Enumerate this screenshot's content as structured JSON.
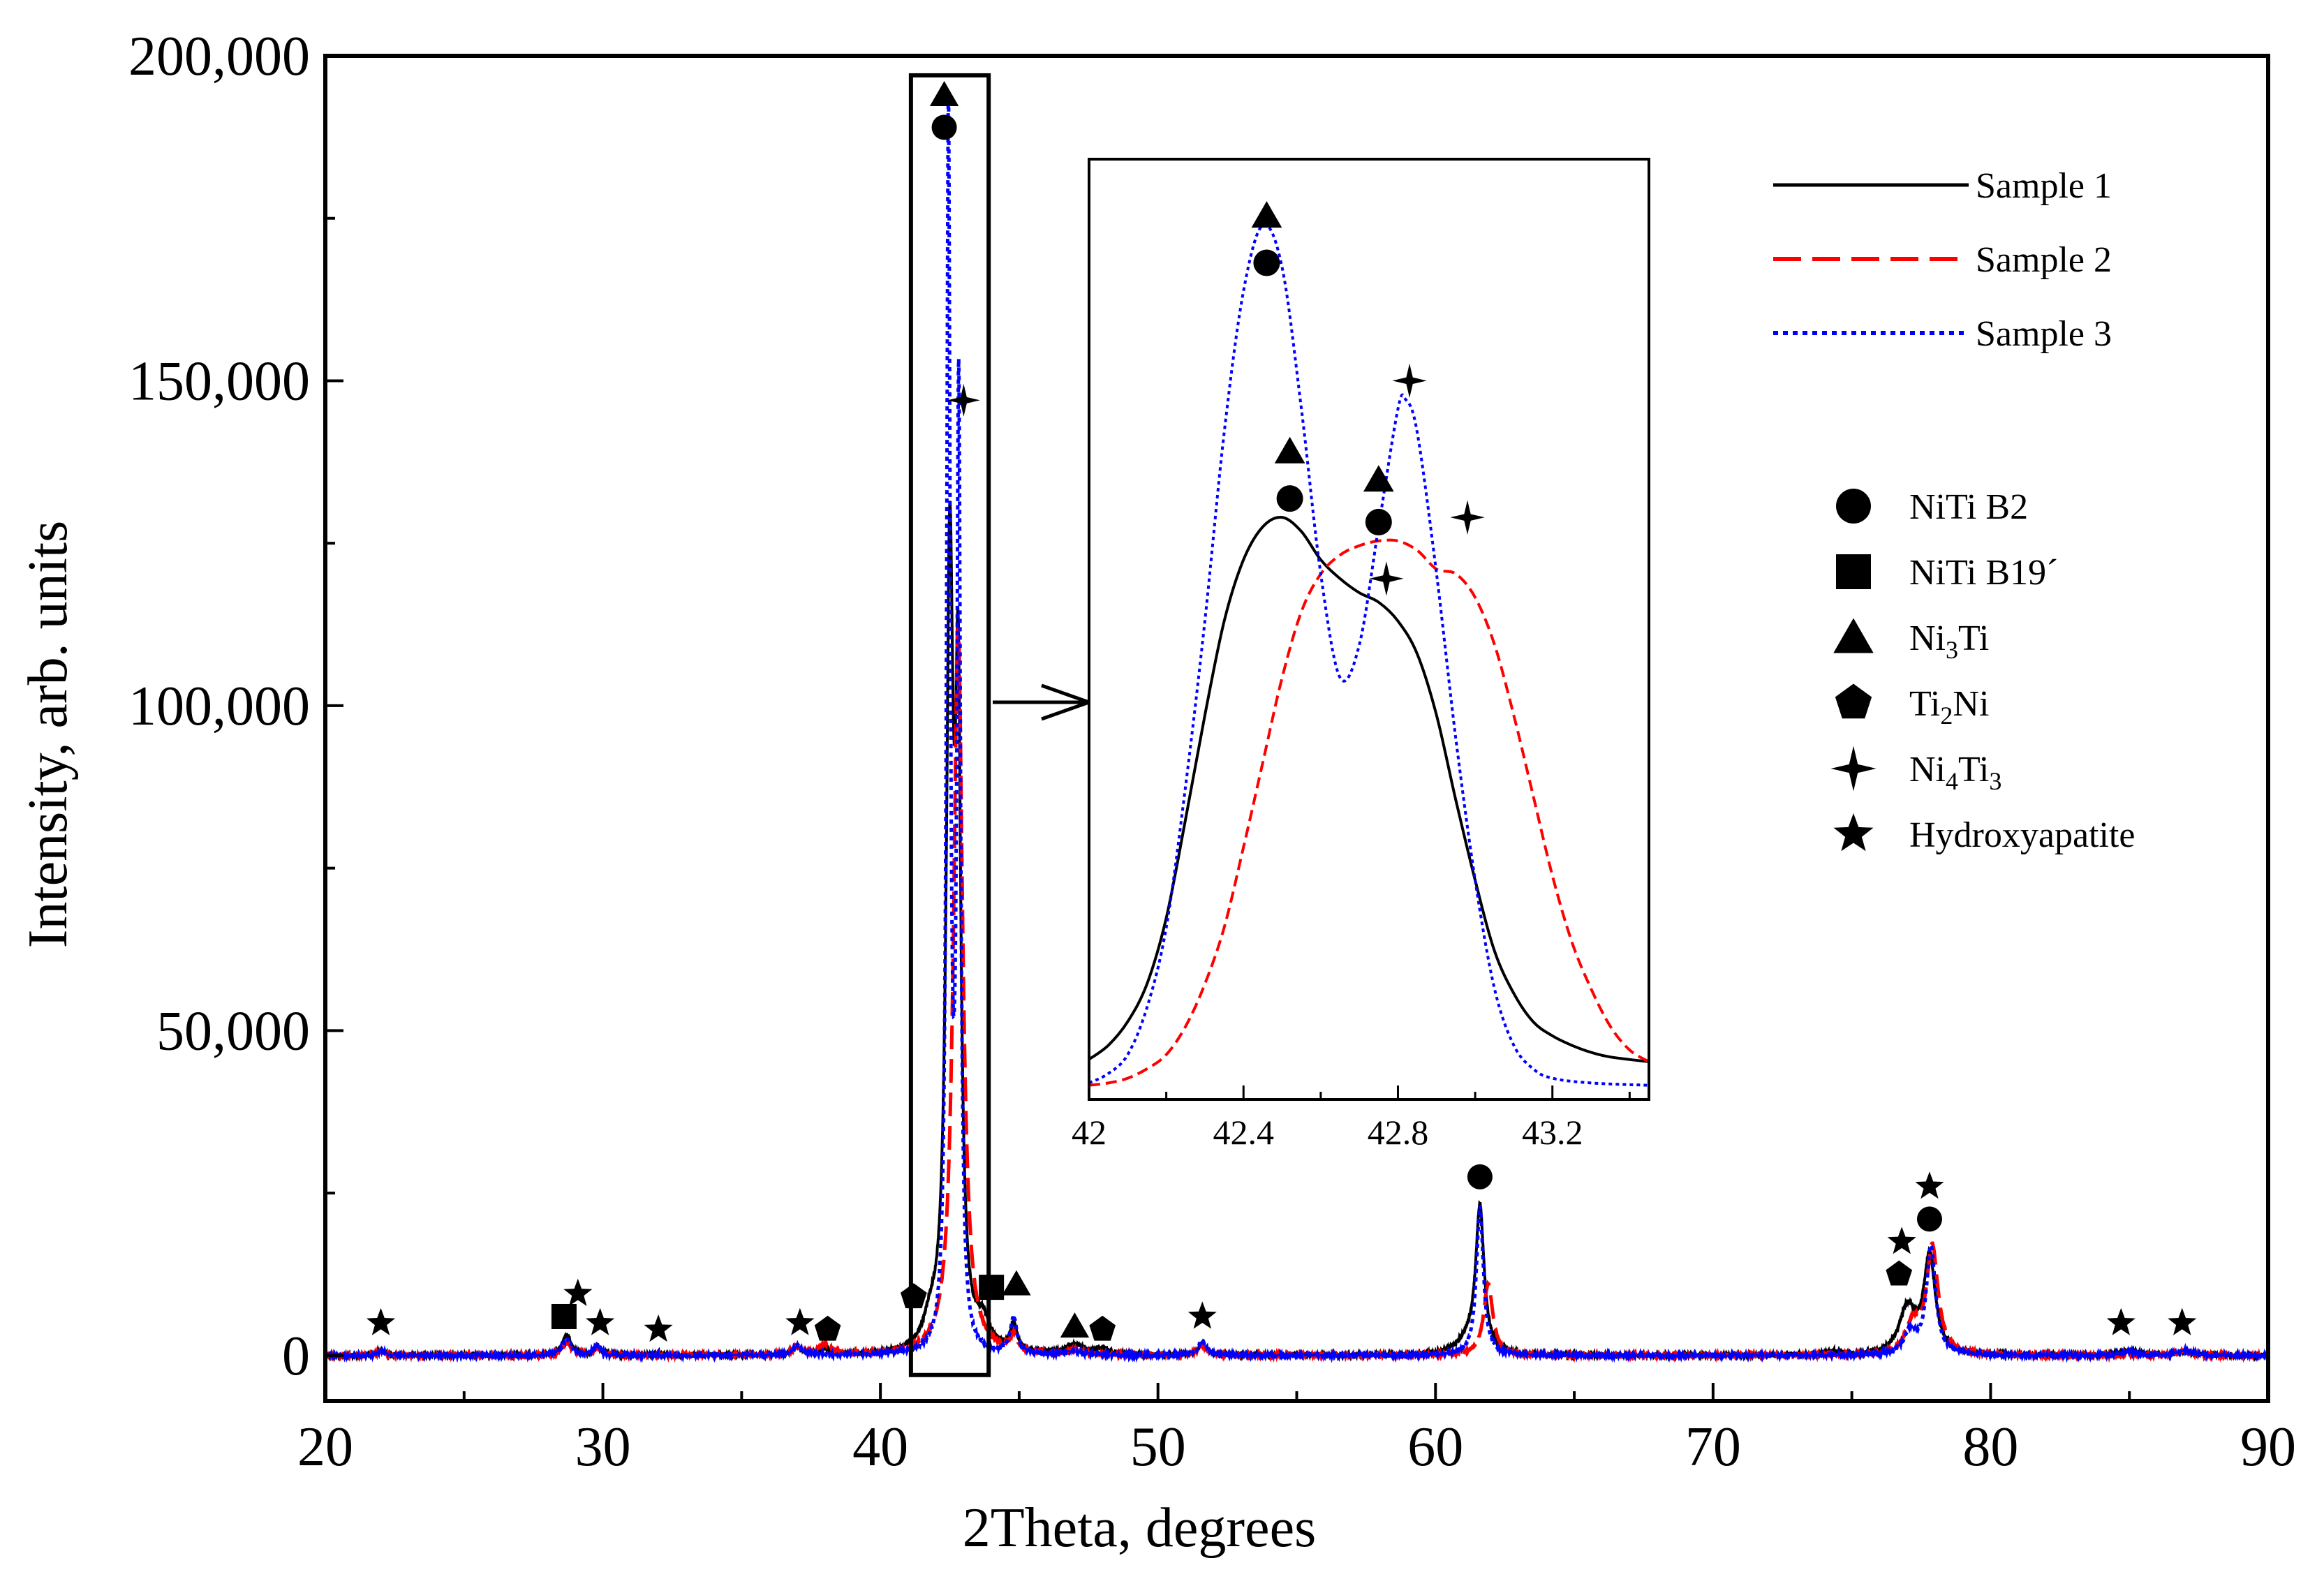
{
  "chart_data": [
    {
      "type": "line",
      "title": "",
      "xlabel": "2Theta, degrees",
      "ylabel": "Intensity, arb. units",
      "xlim": [
        20,
        90
      ],
      "ylim": [
        -7000,
        200000
      ],
      "x_ticks": [
        {
          "value": 20,
          "label": "20"
        },
        {
          "value": 30,
          "label": "30"
        },
        {
          "value": 40,
          "label": "40"
        },
        {
          "value": 50,
          "label": "50"
        },
        {
          "value": 60,
          "label": "60"
        },
        {
          "value": 70,
          "label": "70"
        },
        {
          "value": 80,
          "label": "80"
        },
        {
          "value": 90,
          "label": "90"
        }
      ],
      "y_ticks": [
        {
          "value": 0,
          "label": "0"
        },
        {
          "value": 50000,
          "label": "50,000"
        },
        {
          "value": 100000,
          "label": "100,000"
        },
        {
          "value": 150000,
          "label": "150,000"
        },
        {
          "value": 200000,
          "label": "200,000"
        }
      ],
      "baseline": 0,
      "series": [
        {
          "name": "Sample 1",
          "color": "#000000",
          "style": "solid",
          "noise": 250,
          "peaks": [
            [
              22.0,
              900,
              0.15
            ],
            [
              28.7,
              3200,
              0.18
            ],
            [
              29.8,
              1300,
              0.15
            ],
            [
              32.0,
              400,
              0.15
            ],
            [
              37.0,
              1200,
              0.2
            ],
            [
              38.0,
              900,
              0.2
            ],
            [
              41.8,
              3500,
              0.3
            ],
            [
              42.5,
              118000,
              0.15
            ],
            [
              42.8,
              90000,
              0.12
            ],
            [
              43.7,
              4000,
              0.3
            ],
            [
              44.8,
              4000,
              0.15
            ],
            [
              47.0,
              1500,
              0.4
            ],
            [
              48.0,
              900,
              0.25
            ],
            [
              51.6,
              1800,
              0.18
            ],
            [
              61.2,
              2000,
              0.5
            ],
            [
              61.6,
              22000,
              0.18
            ],
            [
              74.3,
              600,
              0.3
            ],
            [
              77.0,
              7000,
              0.35
            ],
            [
              77.8,
              15000,
              0.25
            ],
            [
              85.0,
              700,
              0.5
            ],
            [
              87.0,
              500,
              0.3
            ]
          ]
        },
        {
          "name": "Sample 2",
          "color": "#ff0000",
          "style": "dashed",
          "noise": 120,
          "peaks": [
            [
              22.0,
              700,
              0.15
            ],
            [
              28.7,
              2000,
              0.18
            ],
            [
              29.8,
              1200,
              0.15
            ],
            [
              37.0,
              1200,
              0.2
            ],
            [
              38.0,
              1500,
              0.3
            ],
            [
              42.8,
              112000,
              0.2
            ],
            [
              44.8,
              2500,
              0.15
            ],
            [
              47.0,
              800,
              0.3
            ],
            [
              51.6,
              1500,
              0.18
            ],
            [
              61.9,
              11000,
              0.2
            ],
            [
              77.2,
              4500,
              0.3
            ],
            [
              77.9,
              16500,
              0.25
            ],
            [
              87.0,
              700,
              0.3
            ]
          ]
        },
        {
          "name": "Sample 3",
          "color": "#0000ff",
          "style": "dotted",
          "noise": 150,
          "peaks": [
            [
              22.0,
              800,
              0.15
            ],
            [
              28.7,
              2500,
              0.18
            ],
            [
              29.8,
              1500,
              0.15
            ],
            [
              37.0,
              1500,
              0.2
            ],
            [
              42.45,
              188000,
              0.08
            ],
            [
              42.82,
              145000,
              0.08
            ],
            [
              44.8,
              5500,
              0.15
            ],
            [
              47.0,
              600,
              0.3
            ],
            [
              51.6,
              2000,
              0.18
            ],
            [
              61.6,
              23000,
              0.15
            ],
            [
              77.1,
              3500,
              0.25
            ],
            [
              77.85,
              16500,
              0.2
            ],
            [
              85.0,
              600,
              0.3
            ],
            [
              87.0,
              800,
              0.3
            ]
          ]
        }
      ],
      "annotations": [
        {
          "symbol": "hydroxyapatite",
          "x": 22.0,
          "y": 5000
        },
        {
          "symbol": "niti-b19",
          "x": 28.6,
          "y": 6000
        },
        {
          "symbol": "hydroxyapatite",
          "x": 29.1,
          "y": 9500
        },
        {
          "symbol": "hydroxyapatite",
          "x": 29.9,
          "y": 5000
        },
        {
          "symbol": "hydroxyapatite",
          "x": 32.0,
          "y": 4000
        },
        {
          "symbol": "hydroxyapatite",
          "x": 37.1,
          "y": 5000
        },
        {
          "symbol": "ti2ni",
          "x": 38.1,
          "y": 4000
        },
        {
          "symbol": "ti2ni",
          "x": 41.2,
          "y": 9000
        },
        {
          "symbol": "niti-b2",
          "x": 42.3,
          "y": 189000
        },
        {
          "symbol": "ni3ti",
          "x": 42.3,
          "y": 194000
        },
        {
          "symbol": "ni4ti3",
          "x": 43.0,
          "y": 147000
        },
        {
          "symbol": "niti-b19",
          "x": 44.0,
          "y": 10500
        },
        {
          "symbol": "ni3ti",
          "x": 44.9,
          "y": 11000
        },
        {
          "symbol": "ni3ti",
          "x": 47.0,
          "y": 4500
        },
        {
          "symbol": "ti2ni",
          "x": 48.0,
          "y": 4000
        },
        {
          "symbol": "hydroxyapatite",
          "x": 51.6,
          "y": 6000
        },
        {
          "symbol": "niti-b2",
          "x": 61.6,
          "y": 27500
        },
        {
          "symbol": "ti2ni",
          "x": 76.7,
          "y": 12500
        },
        {
          "symbol": "hydroxyapatite",
          "x": 76.8,
          "y": 17500
        },
        {
          "symbol": "niti-b2",
          "x": 77.8,
          "y": 21000
        },
        {
          "symbol": "hydroxyapatite",
          "x": 77.8,
          "y": 26000
        },
        {
          "symbol": "hydroxyapatite",
          "x": 84.7,
          "y": 5000
        },
        {
          "symbol": "hydroxyapatite",
          "x": 86.9,
          "y": 5000
        }
      ],
      "zoom_box": {
        "x": [
          41.1,
          43.9
        ],
        "y": [
          -3000,
          197000
        ]
      },
      "legend": [
        {
          "name": "Sample 1",
          "color": "#000000",
          "style": "solid"
        },
        {
          "name": "Sample 2",
          "color": "#ff0000",
          "style": "dashed"
        },
        {
          "name": "Sample 3",
          "color": "#0000ff",
          "style": "dotted"
        }
      ],
      "phase_legend": [
        {
          "symbol": "niti-b2",
          "label": "NiTi B2"
        },
        {
          "symbol": "niti-b19",
          "label": "NiTi B19´"
        },
        {
          "symbol": "ni3ti",
          "label": "Ni",
          "sub1": "3",
          "label2": "Ti",
          "sub2": ""
        },
        {
          "symbol": "ti2ni",
          "label": "Ti",
          "sub1": "2",
          "label2": "Ni",
          "sub2": ""
        },
        {
          "symbol": "ni4ti3",
          "label": "Ni",
          "sub1": "4",
          "label2": "Ti",
          "sub2": "3"
        },
        {
          "symbol": "hydroxyapatite",
          "label": "Hydroxyapatite"
        }
      ]
    },
    {
      "type": "line",
      "title": "",
      "xlabel": "",
      "ylabel": "",
      "xlim": [
        42.0,
        43.45
      ],
      "ylim": [
        -1500,
        198000
      ],
      "x_ticks": [
        {
          "value": 42.0,
          "label": "42"
        },
        {
          "value": 42.4,
          "label": "42.4"
        },
        {
          "value": 42.8,
          "label": "42.8"
        },
        {
          "value": 43.2,
          "label": "43.2"
        }
      ],
      "minor_x_ticks": [
        42.2,
        42.6,
        43.0,
        43.4
      ],
      "series": [
        {
          "name": "Sample 1",
          "color": "#000000",
          "style": "solid",
          "points": [
            [
              42.0,
              7000
            ],
            [
              42.05,
              10000
            ],
            [
              42.1,
              15000
            ],
            [
              42.15,
              23000
            ],
            [
              42.2,
              37000
            ],
            [
              42.25,
              58000
            ],
            [
              42.3,
              80000
            ],
            [
              42.35,
              100000
            ],
            [
              42.4,
              113000
            ],
            [
              42.45,
              120000
            ],
            [
              42.5,
              122000
            ],
            [
              42.55,
              119000
            ],
            [
              42.6,
              113000
            ],
            [
              42.65,
              109000
            ],
            [
              42.7,
              106000
            ],
            [
              42.75,
              104000
            ],
            [
              42.8,
              100000
            ],
            [
              42.85,
              93000
            ],
            [
              42.9,
              80000
            ],
            [
              42.95,
              62000
            ],
            [
              43.0,
              45000
            ],
            [
              43.05,
              30000
            ],
            [
              43.1,
              21000
            ],
            [
              43.15,
              15000
            ],
            [
              43.2,
              12000
            ],
            [
              43.25,
              10000
            ],
            [
              43.3,
              8500
            ],
            [
              43.35,
              7500
            ],
            [
              43.45,
              6500
            ]
          ]
        },
        {
          "name": "Sample 2",
          "color": "#ff0000",
          "style": "dashed",
          "points": [
            [
              42.0,
              1500
            ],
            [
              42.05,
              2000
            ],
            [
              42.1,
              3000
            ],
            [
              42.15,
              5000
            ],
            [
              42.2,
              8000
            ],
            [
              42.25,
              14000
            ],
            [
              42.3,
              23000
            ],
            [
              42.35,
              35000
            ],
            [
              42.4,
              52000
            ],
            [
              42.45,
              70000
            ],
            [
              42.5,
              88000
            ],
            [
              42.55,
              102000
            ],
            [
              42.6,
              110000
            ],
            [
              42.65,
              114000
            ],
            [
              42.7,
              116000
            ],
            [
              42.75,
              117000
            ],
            [
              42.8,
              117000
            ],
            [
              42.85,
              115000
            ],
            [
              42.9,
              111000
            ],
            [
              42.95,
              110000
            ],
            [
              43.0,
              105000
            ],
            [
              43.05,
              95000
            ],
            [
              43.1,
              80000
            ],
            [
              43.15,
              63000
            ],
            [
              43.2,
              46000
            ],
            [
              43.25,
              32000
            ],
            [
              43.3,
              22000
            ],
            [
              43.35,
              14000
            ],
            [
              43.4,
              9000
            ],
            [
              43.45,
              6500
            ]
          ]
        },
        {
          "name": "Sample 3",
          "color": "#0000ff",
          "style": "dotted",
          "points": [
            [
              42.0,
              2000
            ],
            [
              42.05,
              4000
            ],
            [
              42.1,
              8000
            ],
            [
              42.15,
              18000
            ],
            [
              42.2,
              35000
            ],
            [
              42.25,
              65000
            ],
            [
              42.3,
              100000
            ],
            [
              42.35,
              140000
            ],
            [
              42.4,
              170000
            ],
            [
              42.45,
              184000
            ],
            [
              42.5,
              175000
            ],
            [
              42.55,
              145000
            ],
            [
              42.6,
              110000
            ],
            [
              42.65,
              88000
            ],
            [
              42.7,
              95000
            ],
            [
              42.75,
              120000
            ],
            [
              42.8,
              145000
            ],
            [
              42.82,
              147000
            ],
            [
              42.85,
              140000
            ],
            [
              42.9,
              110000
            ],
            [
              42.95,
              75000
            ],
            [
              43.0,
              45000
            ],
            [
              43.05,
              22000
            ],
            [
              43.1,
              10000
            ],
            [
              43.15,
              5000
            ],
            [
              43.2,
              3000
            ],
            [
              43.3,
              2000
            ],
            [
              43.45,
              1500
            ]
          ]
        }
      ],
      "annotations": [
        {
          "symbol": "ni3ti",
          "x": 42.46,
          "y": 186000
        },
        {
          "symbol": "niti-b2",
          "x": 42.46,
          "y": 176000
        },
        {
          "symbol": "ni3ti",
          "x": 42.52,
          "y": 136000
        },
        {
          "symbol": "niti-b2",
          "x": 42.52,
          "y": 126000
        },
        {
          "symbol": "ni3ti",
          "x": 42.75,
          "y": 130000
        },
        {
          "symbol": "niti-b2",
          "x": 42.75,
          "y": 121000
        },
        {
          "symbol": "ni4ti3",
          "x": 42.77,
          "y": 109000
        },
        {
          "symbol": "ni4ti3",
          "x": 42.83,
          "y": 151000
        },
        {
          "symbol": "ni4ti3",
          "x": 42.98,
          "y": 122000
        }
      ]
    }
  ]
}
